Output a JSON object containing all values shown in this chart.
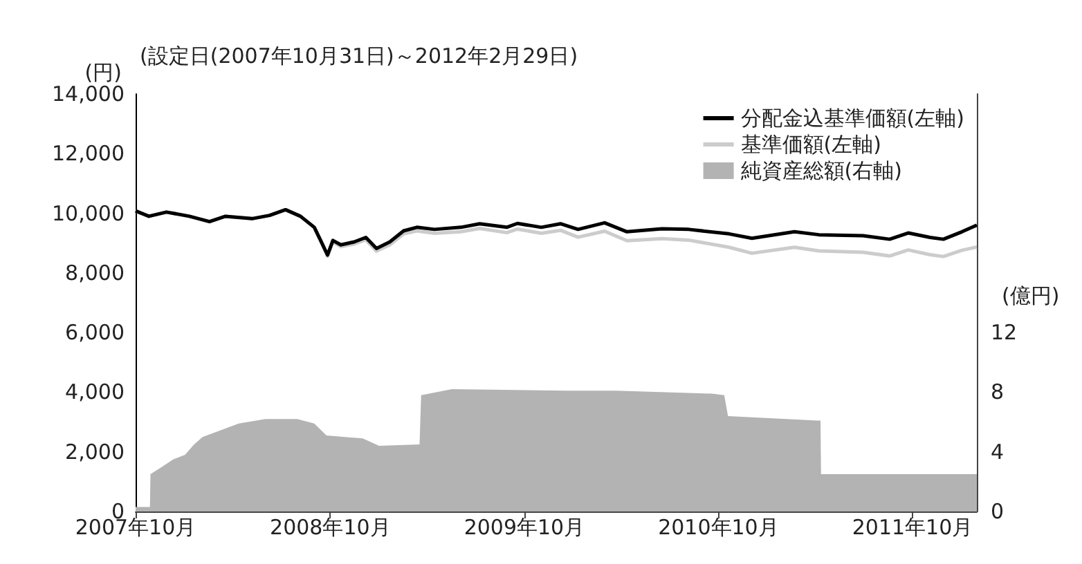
{
  "chart_data": {
    "type": "line",
    "title": "(設定日(2007年10月31日)～2012年2月29日)",
    "ylabel": "(円)",
    "y2label": "(億円)",
    "xlim": [
      "2007-10-31",
      "2012-02-29"
    ],
    "xticks": [
      {
        "value": "2007-10-31",
        "label": "2007年10月"
      },
      {
        "value": "2008-10-31",
        "label": "2008年10月"
      },
      {
        "value": "2009-10-31",
        "label": "2009年10月"
      },
      {
        "value": "2010-10-31",
        "label": "2010年10月"
      },
      {
        "value": "2011-10-31",
        "label": "2011年10月"
      }
    ],
    "ylim": [
      0,
      14000
    ],
    "yticks": [
      0,
      {
        "value": 2000,
        "label": "2,000"
      },
      {
        "value": 4000,
        "label": "4,000"
      },
      {
        "value": 6000,
        "label": "6,000"
      },
      {
        "value": 8000,
        "label": "8,000"
      },
      {
        "value": 10000,
        "label": "10,000"
      },
      {
        "value": 12000,
        "label": "12,000"
      },
      {
        "value": 14000,
        "label": "14,000"
      }
    ],
    "y2lim": [
      0,
      28
    ],
    "y2ticks": [
      0,
      4,
      8,
      12
    ],
    "grid": false,
    "legend": "top right",
    "marker": "none",
    "line_style": "solid",
    "series": [
      {
        "name": "分配金込基準価額(左軸)",
        "color": "#000000",
        "x": [
          "2007-10-31",
          "2007-11-25",
          "2007-12-28",
          "2008-02-09",
          "2008-03-18",
          "2008-04-17",
          "2008-06-06",
          "2008-07-09",
          "2008-08-08",
          "2008-09-05",
          "2008-10-01",
          "2008-10-13",
          "2008-10-26",
          "2008-11-05",
          "2008-11-20",
          "2008-12-15",
          "2009-01-06",
          "2009-01-26",
          "2009-02-20",
          "2009-03-18",
          "2009-04-12",
          "2009-05-15",
          "2009-07-04",
          "2009-08-08",
          "2009-09-28",
          "2009-10-18",
          "2009-12-02",
          "2010-01-07",
          "2010-02-09",
          "2010-03-31",
          "2010-05-12",
          "2010-07-17",
          "2010-09-05",
          "2010-11-20",
          "2011-01-02",
          "2011-03-23",
          "2011-05-08",
          "2011-07-30",
          "2011-09-18",
          "2011-10-23",
          "2011-12-03",
          "2011-12-28",
          "2012-02-01",
          "2012-02-29"
        ],
        "values": [
          10080,
          9900,
          10040,
          9900,
          9720,
          9900,
          9820,
          9930,
          10120,
          9900,
          9530,
          9090,
          8600,
          9090,
          8940,
          9040,
          9190,
          8820,
          9040,
          9410,
          9530,
          9460,
          9530,
          9650,
          9530,
          9660,
          9530,
          9650,
          9460,
          9680,
          9380,
          9480,
          9460,
          9310,
          9160,
          9380,
          9280,
          9250,
          9130,
          9340,
          9190,
          9130,
          9380,
          9600
        ]
      },
      {
        "name": "基準価額(左軸)",
        "color": "#cccccc",
        "x": [
          "2007-10-31",
          "2007-11-25",
          "2007-12-28",
          "2008-02-09",
          "2008-03-18",
          "2008-04-17",
          "2008-06-06",
          "2008-07-09",
          "2008-08-08",
          "2008-09-05",
          "2008-10-01",
          "2008-10-13",
          "2008-10-26",
          "2008-11-05",
          "2008-11-20",
          "2008-12-15",
          "2009-01-06",
          "2009-01-26",
          "2009-02-20",
          "2009-03-18",
          "2009-04-12",
          "2009-05-15",
          "2009-07-04",
          "2009-08-08",
          "2009-09-28",
          "2009-10-18",
          "2009-12-02",
          "2010-01-07",
          "2010-02-09",
          "2010-03-31",
          "2010-05-12",
          "2010-07-17",
          "2010-09-05",
          "2010-11-20",
          "2011-01-02",
          "2011-03-23",
          "2011-05-08",
          "2011-07-30",
          "2011-09-18",
          "2011-10-23",
          "2011-12-03",
          "2011-12-28",
          "2012-02-01",
          "2012-02-29"
        ],
        "values": [
          10080,
          9900,
          10040,
          9900,
          9720,
          9900,
          9820,
          9930,
          10120,
          9900,
          9530,
          9070,
          8560,
          9040,
          8880,
          8970,
          9110,
          8730,
          8940,
          9310,
          9410,
          9330,
          9380,
          9490,
          9350,
          9470,
          9330,
          9430,
          9200,
          9400,
          9080,
          9150,
          9100,
          8860,
          8660,
          8860,
          8740,
          8690,
          8570,
          8770,
          8610,
          8550,
          8760,
          8870
        ]
      },
      {
        "name": "純資産総額(右軸)",
        "type": "area",
        "axis": "y2",
        "color": "#b3b3b3",
        "x": [
          "2007-10-31",
          "2007-11-27",
          "2007-11-28",
          "2007-12-20",
          "2008-01-10",
          "2008-02-01",
          "2008-02-18",
          "2008-03-05",
          "2008-05-12",
          "2008-07-01",
          "2008-08-30",
          "2008-10-01",
          "2008-10-24",
          "2008-12-31",
          "2009-01-31",
          "2009-04-17",
          "2009-04-20",
          "2009-06-17",
          "2010-01-20",
          "2010-04-22",
          "2010-10-19",
          "2010-11-11",
          "2010-11-18",
          "2011-05-06",
          "2011-05-11",
          "2011-05-12",
          "2012-02-29"
        ],
        "values": [
          0.3,
          0.3,
          2.5,
          3.0,
          3.5,
          3.8,
          4.5,
          5.0,
          5.9,
          6.2,
          6.2,
          5.9,
          5.1,
          4.9,
          4.4,
          4.5,
          7.8,
          8.2,
          8.1,
          8.1,
          7.9,
          7.8,
          6.4,
          6.1,
          6.1,
          2.5,
          2.5
        ]
      }
    ]
  }
}
